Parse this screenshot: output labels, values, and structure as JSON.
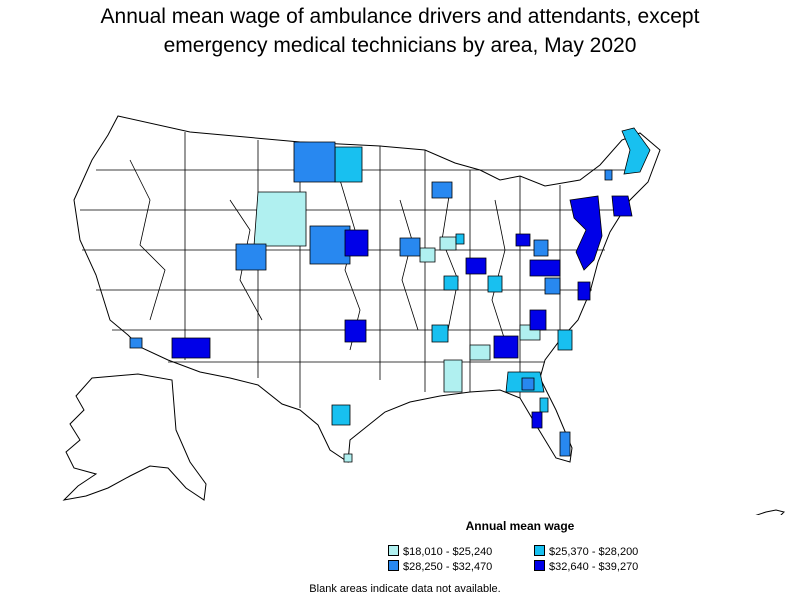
{
  "title_line1": "Annual mean wage of ambulance drivers and attendants, except",
  "title_line2": "emergency medical technicians by area, May 2020",
  "legend": {
    "title": "Annual mean wage",
    "items": [
      {
        "label": "$18,010 - $25,240",
        "color": "#b0f0f0"
      },
      {
        "label": "$25,370 - $28,200",
        "color": "#18c0f0"
      },
      {
        "label": "$28,250 - $32,470",
        "color": "#2888f0"
      },
      {
        "label": "$32,640 - $39,270",
        "color": "#0000e8"
      }
    ]
  },
  "note": "Blank areas indicate data not available.",
  "map_colors": {
    "land": "#ffffff",
    "border": "#000000"
  }
}
